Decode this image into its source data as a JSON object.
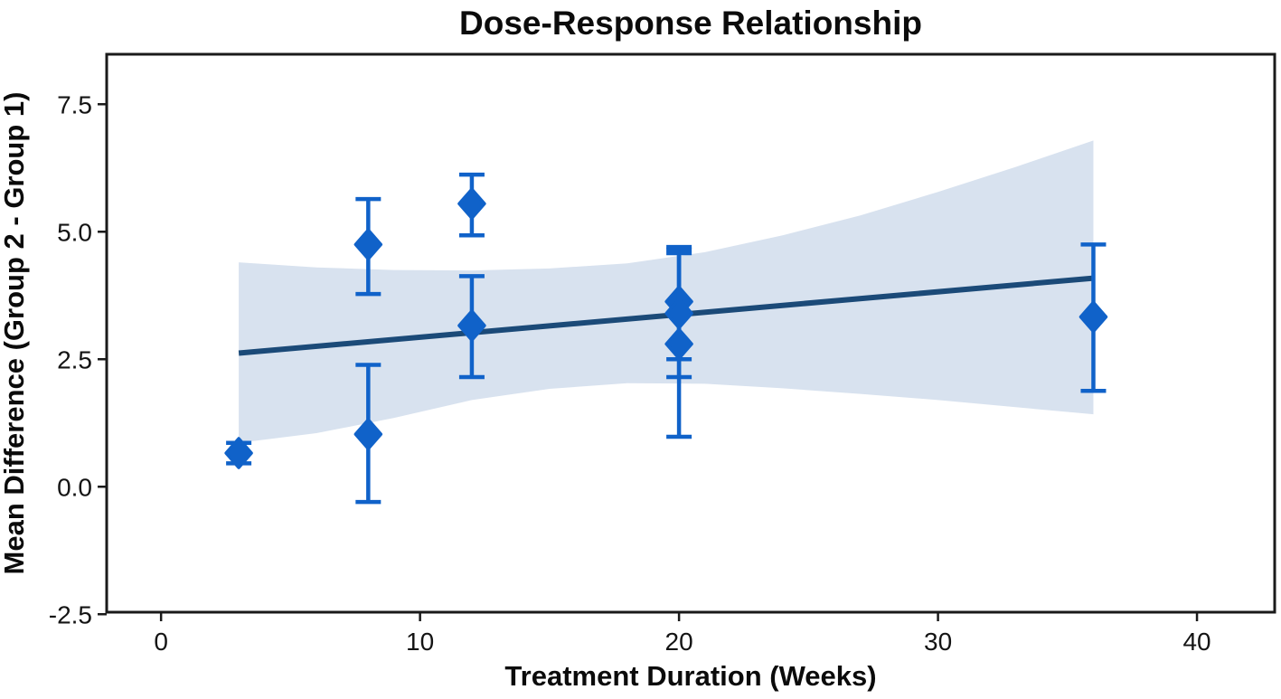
{
  "figure": {
    "title": "Dose-Response Relationship"
  },
  "chart_data": {
    "type": "scatter",
    "title": "Dose-Response Relationship",
    "xlabel": "Treatment Duration (Weeks)",
    "ylabel": "Mean Difference (Group 2 - Group 1)",
    "xlim": [
      -2.1,
      43.0
    ],
    "ylim": [
      -2.46,
      8.48
    ],
    "x_ticks": [
      {
        "value": 0,
        "label": "0"
      },
      {
        "value": 10,
        "label": "10"
      },
      {
        "value": 20,
        "label": "20"
      },
      {
        "value": 30,
        "label": "30"
      },
      {
        "value": 40,
        "label": "40"
      }
    ],
    "y_ticks": [
      {
        "value": 7.5,
        "label": "7.5"
      },
      {
        "value": 5.0,
        "label": "5.0"
      },
      {
        "value": 2.5,
        "label": "2.5"
      },
      {
        "value": 0.0,
        "label": "0.0"
      },
      {
        "value": -2.5,
        "label": "-2.5"
      }
    ],
    "points": [
      {
        "x": 3,
        "y": 0.66,
        "ci_low": 0.46,
        "ci_high": 0.86
      },
      {
        "x": 8,
        "y": 4.75,
        "ci_low": 3.78,
        "ci_high": 5.64
      },
      {
        "x": 8,
        "y": 1.03,
        "ci_low": -0.3,
        "ci_high": 2.39
      },
      {
        "x": 12,
        "y": 5.55,
        "ci_low": 4.93,
        "ci_high": 6.12
      },
      {
        "x": 12,
        "y": 3.16,
        "ci_low": 2.15,
        "ci_high": 4.13
      },
      {
        "x": 20,
        "y": 3.63,
        "ci_low": 2.5,
        "ci_high": 4.7
      },
      {
        "x": 20,
        "y": 3.4,
        "ci_low": 2.15,
        "ci_high": 4.65
      },
      {
        "x": 20,
        "y": 2.8,
        "ci_low": 0.98,
        "ci_high": 4.58
      },
      {
        "x": 36,
        "y": 3.33,
        "ci_low": 1.88,
        "ci_high": 4.75
      }
    ],
    "trend_line": {
      "x1": 3,
      "y1": 2.62,
      "x2": 36,
      "y2": 4.09
    },
    "confidence_band": {
      "x": [
        3,
        6,
        9,
        12,
        15,
        18,
        21,
        24,
        27,
        30,
        33,
        36
      ],
      "upper": [
        4.4,
        4.3,
        4.25,
        4.24,
        4.28,
        4.38,
        4.6,
        4.93,
        5.32,
        5.78,
        6.27,
        6.79
      ],
      "lower": [
        0.86,
        1.05,
        1.35,
        1.7,
        1.92,
        2.03,
        2.02,
        1.93,
        1.82,
        1.7,
        1.56,
        1.42
      ]
    },
    "legend": null,
    "grid": false,
    "colors": {
      "point": "#1062c9",
      "error_bar": "#1062c9",
      "trend_line": "#1b4a78",
      "band": "#d8e2ef",
      "panel_border": "#1a1a1a",
      "background": "#ffffff"
    }
  }
}
